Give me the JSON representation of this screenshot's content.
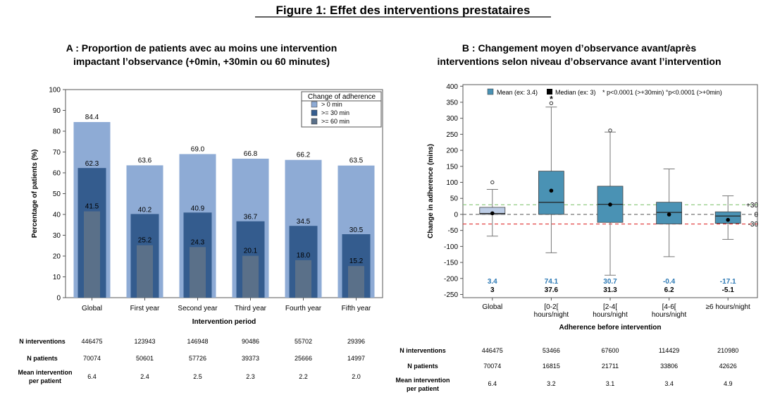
{
  "figure_title": "Figure 1: Effet des interventions prestataires",
  "panel_a": {
    "title_line1": "A : Proportion de patients avec au moins une intervention",
    "title_line2": "impactant l’observance (+0min, +30min ou 60 minutes)",
    "table": {
      "rows": [
        {
          "label": "N interventions",
          "values": [
            "446475",
            "123943",
            "146948",
            "90486",
            "55702",
            "29396"
          ]
        },
        {
          "label": "N patients",
          "values": [
            "70074",
            "50601",
            "57726",
            "39373",
            "25666",
            "14997"
          ]
        },
        {
          "label_line1": "Mean intervention",
          "label_line2": "per patient",
          "values": [
            "6.4",
            "2.4",
            "2.5",
            "2.3",
            "2.2",
            "2.0"
          ]
        }
      ]
    }
  },
  "panel_b": {
    "title_line1": "B : Changement moyen d’observance avant/après",
    "title_line2": "interventions selon niveau d’observance avant l’intervention",
    "table": {
      "rows": [
        {
          "label": "N interventions",
          "values": [
            "446475",
            "53466",
            "67600",
            "114429",
            "210980"
          ]
        },
        {
          "label": "N patients",
          "values": [
            "70074",
            "16815",
            "21711",
            "33806",
            "42626"
          ]
        },
        {
          "label_line1": "Mean intervention",
          "label_line2": "per patient",
          "values": [
            "6.4",
            "3.2",
            "3.1",
            "3.4",
            "4.9"
          ]
        }
      ]
    }
  },
  "chart_data": [
    {
      "type": "bar",
      "xlabel": "Intervention period",
      "ylabel": "Percentage of patients (%)",
      "ylim": [
        0,
        100
      ],
      "yticks": [
        0,
        10,
        20,
        30,
        40,
        50,
        60,
        70,
        80,
        90,
        100
      ],
      "categories": [
        "Global",
        "First year",
        "Second year",
        "Third year",
        "Fourth year",
        "Fifth year"
      ],
      "legend": {
        "title": "Change of adherence",
        "position": "top-right"
      },
      "series": [
        {
          "name": "> 0 min",
          "color": "#8eabd5",
          "values": [
            84.4,
            63.6,
            69.0,
            66.8,
            66.2,
            63.5
          ],
          "labels": [
            "84.4",
            "63.6",
            "69.0",
            "66.8",
            "66.2",
            "63.5"
          ]
        },
        {
          "name": ">= 30 min",
          "color": "#345c8e",
          "values": [
            62.3,
            40.2,
            40.9,
            36.7,
            34.5,
            30.5
          ],
          "labels": [
            "62.3",
            "40.2",
            "40.9",
            "36.7",
            "34.5",
            "30.5"
          ]
        },
        {
          "name": ">= 60 min",
          "color": "#5a7089",
          "values": [
            41.5,
            25.2,
            24.3,
            20.1,
            18.0,
            15.2
          ],
          "labels": [
            "41.5",
            "25.2",
            "24.3",
            "20.1",
            "18.0",
            "15.2"
          ]
        }
      ],
      "grid": false
    },
    {
      "type": "box",
      "xlabel": "Adherence before intervention",
      "ylabel": "Change in adherence (mins)",
      "ylim": [
        -260,
        405
      ],
      "yticks": [
        400,
        350,
        300,
        250,
        200,
        150,
        100,
        50,
        0,
        -50,
        -100,
        -150,
        -200,
        -250
      ],
      "categories": [
        [
          "Global"
        ],
        [
          "[0-2[",
          "hours/night"
        ],
        [
          "[2-4[",
          "hours/night"
        ],
        [
          "[4-6[",
          "hours/night"
        ],
        [
          "≥6 hours/night"
        ]
      ],
      "legend": {
        "mean_label": "Mean (ex: 3.4)",
        "median_label": "Median (ex: 3)",
        "note": "* p<0.0001 (>+30min) °p<0.0001 (>+0min)",
        "position": "top"
      },
      "reference_lines": [
        {
          "value": 30,
          "label": "+30",
          "color": "#88c878"
        },
        {
          "value": 0,
          "label": "0",
          "color": "#666666"
        },
        {
          "value": -30,
          "label": "-30",
          "color": "#e03030"
        }
      ],
      "boxes": [
        {
          "q1": 0,
          "median": 3,
          "q3": 22,
          "whisker_low": -68,
          "whisker_high": 78,
          "mean": 3.4,
          "outliers": [
            100
          ],
          "highlight": false
        },
        {
          "q1": 0,
          "median": 37.6,
          "q3": 135,
          "whisker_low": -120,
          "whisker_high": 335,
          "mean": 74.1,
          "outliers": [
            347
          ],
          "marker": "*",
          "highlight": true
        },
        {
          "q1": -25,
          "median": 31.3,
          "q3": 88,
          "whisker_low": -190,
          "whisker_high": 257,
          "mean": 30.7,
          "outliers": [
            262
          ],
          "highlight": true
        },
        {
          "q1": -30,
          "median": 6.2,
          "q3": 38,
          "whisker_low": -132,
          "whisker_high": 142,
          "mean": -0.4,
          "outliers": [],
          "highlight": true
        },
        {
          "q1": -28,
          "median": -5.1,
          "q3": 8,
          "whisker_low": -78,
          "whisker_high": 58,
          "mean": -17.1,
          "outliers": [],
          "highlight": true
        }
      ],
      "mean_labels": [
        "3.4",
        "74.1",
        "30.7",
        "-0.4",
        "-17.1"
      ],
      "median_labels": [
        "3",
        "37.6",
        "31.3",
        "6.2",
        "-5.1"
      ],
      "colors": {
        "box_highlight": "#4a92b4",
        "box_global": "#bdcde6",
        "mean_text": "#2b78b4",
        "median_text": "#000000"
      }
    }
  ]
}
